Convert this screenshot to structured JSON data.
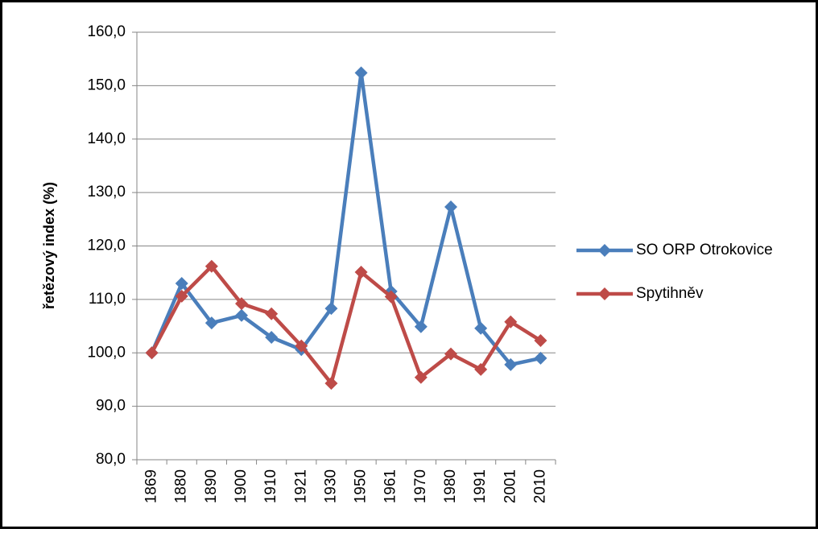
{
  "chart_data": {
    "type": "line",
    "y_label": "řetězový index (%)",
    "categories": [
      "1869",
      "1880",
      "1890",
      "1900",
      "1910",
      "1921",
      "1930",
      "1950",
      "1961",
      "1970",
      "1980",
      "1991",
      "2001",
      "2010"
    ],
    "series": [
      {
        "name": "SO ORP Otrokovice",
        "color": "#4a7ebb",
        "values": [
          100.0,
          113.0,
          105.6,
          107.0,
          102.9,
          100.6,
          108.3,
          152.4,
          111.5,
          104.9,
          127.3,
          104.6,
          97.8,
          99.0
        ]
      },
      {
        "name": "Spytihněv",
        "color": "#be4b48",
        "values": [
          100.0,
          110.6,
          116.2,
          109.2,
          107.3,
          101.3,
          94.3,
          115.1,
          110.5,
          95.4,
          99.8,
          96.9,
          105.8,
          102.3
        ]
      }
    ],
    "ylim": [
      80,
      160
    ],
    "yticks": [
      {
        "value": 80,
        "label": "80,0"
      },
      {
        "value": 90,
        "label": "90,0"
      },
      {
        "value": 100,
        "label": "100,0"
      },
      {
        "value": 110,
        "label": "110,0"
      },
      {
        "value": 120,
        "label": "120,0"
      },
      {
        "value": 130,
        "label": "130,0"
      },
      {
        "value": 140,
        "label": "140,0"
      },
      {
        "value": 150,
        "label": "150,0"
      },
      {
        "value": 160,
        "label": "160,0"
      }
    ],
    "grid": true
  }
}
